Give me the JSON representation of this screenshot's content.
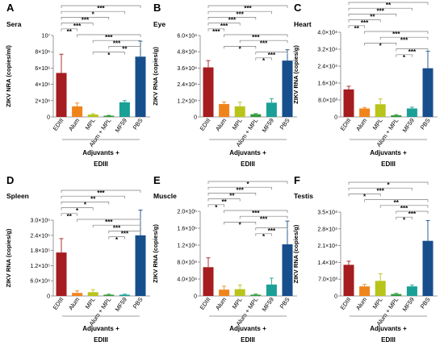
{
  "colors": {
    "EDIII": "#a51d1f",
    "Alum": "#f0841c",
    "MPL": "#b8c41a",
    "Alum + MPL": "#2f9a3a",
    "MF59": "#1aa096",
    "PBS": "#174e8c",
    "axis": "#7f7f7f",
    "text": "#000000"
  },
  "xgroup": {
    "line1": "Adjuvants +",
    "line2": "EDIII"
  },
  "chart_data": [
    {
      "type": "bar",
      "panel": "A",
      "title": "Sera",
      "ylabel": "ZIKV NRA (copies/ml)",
      "categories": [
        "EDIII",
        "Alum",
        "MPL",
        "Alum + MPL",
        "MF59",
        "PBS"
      ],
      "values": [
        5400000.0,
        1300000.0,
        300000.0,
        150000.0,
        1800000.0,
        7400000.0
      ],
      "errors": [
        2300000.0,
        400000.0,
        100000.0,
        50000.0,
        200000.0,
        1900000.0
      ],
      "ylim": [
        0,
        10000000.0
      ],
      "yticks": [
        0,
        2000000.0,
        4000000.0,
        6000000.0,
        8000000.0,
        10000000.0
      ],
      "ytick_labels": [
        "0",
        "2×10⁶",
        "4×10⁶",
        "6×10⁶",
        "8×10⁶",
        "10⁷"
      ],
      "significance": [
        {
          "from": "EDIII",
          "to": "PBS",
          "label": "***"
        },
        {
          "from": "EDIII",
          "to": "MF59",
          "label": "*"
        },
        {
          "from": "EDIII",
          "to": "Alum + MPL",
          "label": "***"
        },
        {
          "from": "EDIII",
          "to": "MPL",
          "label": "***"
        },
        {
          "from": "EDIII",
          "to": "Alum",
          "label": "**"
        },
        {
          "from": "Alum",
          "to": "PBS",
          "label": "***"
        },
        {
          "from": "MPL",
          "to": "PBS",
          "label": "***"
        },
        {
          "from": "Alum + MPL",
          "to": "PBS",
          "label": "**"
        },
        {
          "from": "MPL",
          "to": "MF59",
          "label": "*"
        }
      ]
    },
    {
      "type": "bar",
      "panel": "B",
      "title": "Eye",
      "ylabel": "ZIKV RNA (copies/g)",
      "categories": [
        "EDIII",
        "Alum",
        "MPL",
        "Alum + MPL",
        "MF59",
        "PBS"
      ],
      "values": [
        36500,
        9500,
        7800,
        2000,
        10500,
        41500
      ],
      "errors": [
        5000,
        1500,
        3000,
        500,
        3000,
        8000
      ],
      "ylim": [
        0,
        60000
      ],
      "yticks": [
        0,
        12000,
        24000,
        36000,
        48000,
        60000
      ],
      "ytick_labels": [
        "0",
        "1.2×10⁴",
        "2.4×10⁴",
        "3.6×10⁴",
        "4.8×10⁴",
        "6.0×10⁴"
      ],
      "significance": [
        {
          "from": "EDIII",
          "to": "PBS",
          "label": "***"
        },
        {
          "from": "EDIII",
          "to": "MF59",
          "label": "***"
        },
        {
          "from": "EDIII",
          "to": "Alum + MPL",
          "label": "***"
        },
        {
          "from": "EDIII",
          "to": "MPL",
          "label": "***"
        },
        {
          "from": "EDIII",
          "to": "Alum",
          "label": "***"
        },
        {
          "from": "Alum",
          "to": "PBS",
          "label": "***"
        },
        {
          "from": "MPL",
          "to": "PBS",
          "label": "***"
        },
        {
          "from": "Alum",
          "to": "Alum + MPL",
          "label": "*"
        },
        {
          "from": "Alum + MPL",
          "to": "PBS",
          "label": "***"
        },
        {
          "from": "Alum + MPL",
          "to": "MF59",
          "label": "*"
        }
      ]
    },
    {
      "type": "bar",
      "panel": "C",
      "title": "Heart",
      "ylabel": "ZIKV RNA (copies/g)",
      "categories": [
        "EDIII",
        "Alum",
        "MPL",
        "Alum + MPL",
        "MF59",
        "PBS"
      ],
      "values": [
        13000,
        4000,
        6000,
        800,
        4000,
        23000
      ],
      "errors": [
        1500,
        500,
        2500,
        300,
        600,
        8000
      ],
      "ylim": [
        0,
        40000
      ],
      "yticks": [
        0,
        8000,
        16000,
        24000,
        32000,
        40000
      ],
      "ytick_labels": [
        "0",
        "8.0×10³",
        "1.6×10⁴",
        "2.4×10⁴",
        "3.2×10⁴",
        "4.0×10⁴"
      ],
      "significance": [
        {
          "from": "EDIII",
          "to": "PBS",
          "label": "**"
        },
        {
          "from": "EDIII",
          "to": "MF59",
          "label": "***"
        },
        {
          "from": "EDIII",
          "to": "Alum + MPL",
          "label": "**"
        },
        {
          "from": "EDIII",
          "to": "MPL",
          "label": "***"
        },
        {
          "from": "EDIII",
          "to": "Alum",
          "label": "**"
        },
        {
          "from": "Alum",
          "to": "PBS",
          "label": "***"
        },
        {
          "from": "MPL",
          "to": "PBS",
          "label": "***"
        },
        {
          "from": "Alum",
          "to": "Alum + MPL",
          "label": "*"
        },
        {
          "from": "Alum + MPL",
          "to": "PBS",
          "label": "***"
        },
        {
          "from": "Alum + MPL",
          "to": "MF59",
          "label": "*"
        }
      ]
    },
    {
      "type": "bar",
      "panel": "D",
      "title": "Spleen",
      "ylabel": "ZIKV RNA (copies/g)",
      "categories": [
        "EDIII",
        "Alum",
        "MPL",
        "Alum + MPL",
        "MF59",
        "PBS"
      ],
      "values": [
        172000,
        12000,
        15000,
        5000,
        5000,
        240000
      ],
      "errors": [
        55000,
        8000,
        10000,
        2000,
        2000,
        100000
      ],
      "ylim": [
        0,
        300000
      ],
      "yticks": [
        0,
        60000,
        120000,
        180000,
        240000,
        300000
      ],
      "ytick_labels": [
        "0",
        "6.0×10⁴",
        "1.2×10⁵",
        "1.8×10⁵",
        "2.4×10⁵",
        "3.0×10⁵"
      ],
      "significance": [
        {
          "from": "EDIII",
          "to": "PBS",
          "label": "***"
        },
        {
          "from": "EDIII",
          "to": "MF59",
          "label": "**"
        },
        {
          "from": "EDIII",
          "to": "Alum + MPL",
          "label": "*"
        },
        {
          "from": "EDIII",
          "to": "MPL",
          "label": "*"
        },
        {
          "from": "EDIII",
          "to": "Alum",
          "label": "**"
        },
        {
          "from": "Alum",
          "to": "PBS",
          "label": "***"
        },
        {
          "from": "MPL",
          "to": "PBS",
          "label": "***"
        },
        {
          "from": "Alum + MPL",
          "to": "PBS",
          "label": "***"
        },
        {
          "from": "Alum + MPL",
          "to": "MF59",
          "label": "*"
        }
      ]
    },
    {
      "type": "bar",
      "panel": "E",
      "title": "Muscle",
      "ylabel": "ZIKV RNA (copies/g)",
      "categories": [
        "EDIII",
        "Alum",
        "MPL",
        "Alum + MPL",
        "MF59",
        "PBS"
      ],
      "values": [
        68000,
        15000,
        16000,
        3000,
        27000,
        122000
      ],
      "errors": [
        22000,
        8000,
        10000,
        1500,
        15000,
        55000
      ],
      "ylim": [
        0,
        200000
      ],
      "yticks": [
        0,
        40000,
        80000,
        120000,
        160000,
        200000
      ],
      "ytick_labels": [
        "0",
        "4.0×10⁴",
        "8.0×10⁴",
        "1.2×10⁵",
        "1.6×10⁵",
        "2.0×10⁵"
      ],
      "significance": [
        {
          "from": "EDIII",
          "to": "PBS",
          "label": "*"
        },
        {
          "from": "EDIII",
          "to": "MF59",
          "label": "***"
        },
        {
          "from": "EDIII",
          "to": "Alum + MPL",
          "label": "**"
        },
        {
          "from": "EDIII",
          "to": "MPL",
          "label": "**"
        },
        {
          "from": "EDIII",
          "to": "Alum",
          "label": "*"
        },
        {
          "from": "Alum",
          "to": "PBS",
          "label": "***"
        },
        {
          "from": "MPL",
          "to": "PBS",
          "label": "***"
        },
        {
          "from": "Alum",
          "to": "Alum + MPL",
          "label": "*"
        },
        {
          "from": "Alum + MPL",
          "to": "PBS",
          "label": "***"
        },
        {
          "from": "Alum + MPL",
          "to": "MF59",
          "label": "*"
        }
      ]
    },
    {
      "type": "bar",
      "panel": "F",
      "title": "Testis",
      "ylabel": "ZIKV RNA (copies/g)",
      "categories": [
        "EDIII",
        "Alum",
        "MPL",
        "Alum + MPL",
        "MF59",
        "PBS"
      ],
      "values": [
        13000,
        4000,
        6300,
        800,
        4000,
        23000
      ],
      "errors": [
        1500,
        800,
        3000,
        300,
        600,
        8500
      ],
      "ylim": [
        0,
        35000
      ],
      "yticks": [
        0,
        7000,
        14000,
        21000,
        28000,
        35000
      ],
      "ytick_labels": [
        "0",
        "7.0×10³",
        "1.4×10⁴",
        "2.1×10⁴",
        "2.8×10⁴",
        "3.5×10⁴"
      ],
      "significance": [
        {
          "from": "EDIII",
          "to": "PBS",
          "label": "*"
        },
        {
          "from": "EDIII",
          "to": "MF59",
          "label": "***"
        },
        {
          "from": "EDIII",
          "to": "MPL",
          "label": "*"
        },
        {
          "from": "Alum",
          "to": "PBS",
          "label": "**"
        },
        {
          "from": "MPL",
          "to": "PBS",
          "label": "***"
        },
        {
          "from": "Alum + MPL",
          "to": "PBS",
          "label": "***"
        },
        {
          "from": "Alum + MPL",
          "to": "MF59",
          "label": "*"
        }
      ]
    }
  ]
}
